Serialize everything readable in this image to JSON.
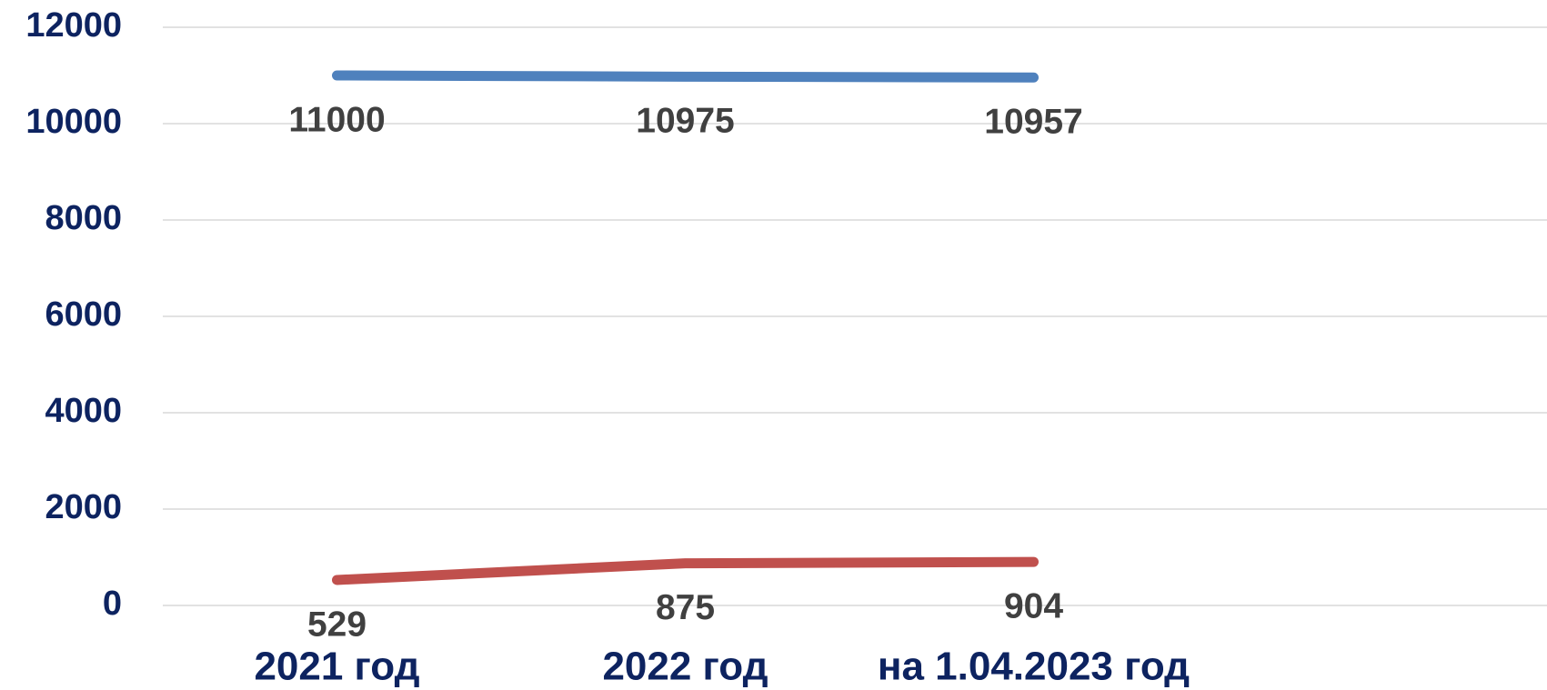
{
  "chart_data": {
    "type": "line",
    "categories": [
      "2021 год",
      "2022 год",
      "на 1.04.2023 год"
    ],
    "series": [
      {
        "color": "#4f81bd",
        "values": [
          11000,
          10975,
          10957
        ]
      },
      {
        "color": "#c0504d",
        "values": [
          529,
          875,
          904
        ]
      }
    ],
    "ylim": [
      0,
      12000
    ],
    "yticks": [
      0,
      2000,
      4000,
      6000,
      8000,
      10000,
      12000
    ],
    "grid": true
  }
}
